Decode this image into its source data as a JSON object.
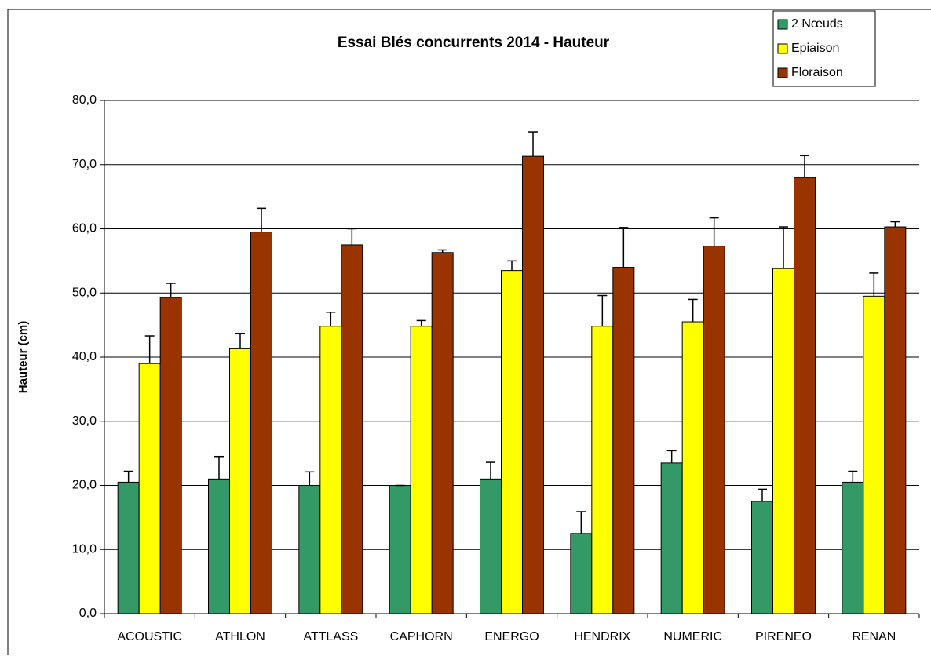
{
  "chart_data": {
    "type": "bar",
    "title": "Essai Blés concurrents 2014 - Hauteur",
    "y_label": "Hauteur (cm)",
    "categories": [
      "ACOUSTIC",
      "ATHLON",
      "ATTLASS",
      "CAPHORN",
      "ENERGO",
      "HENDRIX",
      "NUMERIC",
      "PIRENEO",
      "RENAN"
    ],
    "series": [
      {
        "name": "2 Nœuds",
        "color": "#339966",
        "values": [
          20.5,
          21,
          20,
          20,
          21,
          12.5,
          23.5,
          17.5,
          20.5
        ],
        "errors": [
          1.7,
          3.5,
          2.1,
          0,
          2.6,
          3.4,
          1.9,
          1.9,
          1.7
        ]
      },
      {
        "name": "Epiaison",
        "color": "#ffff00",
        "values": [
          39,
          41.3,
          44.8,
          44.8,
          53.5,
          44.8,
          45.5,
          53.8,
          49.5
        ],
        "errors": [
          4.3,
          2.4,
          2.2,
          0.9,
          1.5,
          4.8,
          3.5,
          6.5,
          3.6
        ]
      },
      {
        "name": "Floraison",
        "color": "#993300",
        "values": [
          49.3,
          59.5,
          57.5,
          56.3,
          71.3,
          54,
          57.3,
          68,
          60.3
        ],
        "errors": [
          2.2,
          3.7,
          2.5,
          0.4,
          3.8,
          6.2,
          4.4,
          3.4,
          0.8
        ]
      }
    ],
    "ylim": [
      0,
      80
    ],
    "yticks": [
      {
        "value": 0,
        "label": "0,0"
      },
      {
        "value": 10,
        "label": "10,0"
      },
      {
        "value": 20,
        "label": "20,0"
      },
      {
        "value": 30,
        "label": "30,0"
      },
      {
        "value": 40,
        "label": "40,0"
      },
      {
        "value": 50,
        "label": "50,0"
      },
      {
        "value": 60,
        "label": "60,0"
      },
      {
        "value": 70,
        "label": "70,0"
      },
      {
        "value": 80,
        "label": "80,0"
      }
    ],
    "grid": true,
    "legend": "top-right"
  }
}
